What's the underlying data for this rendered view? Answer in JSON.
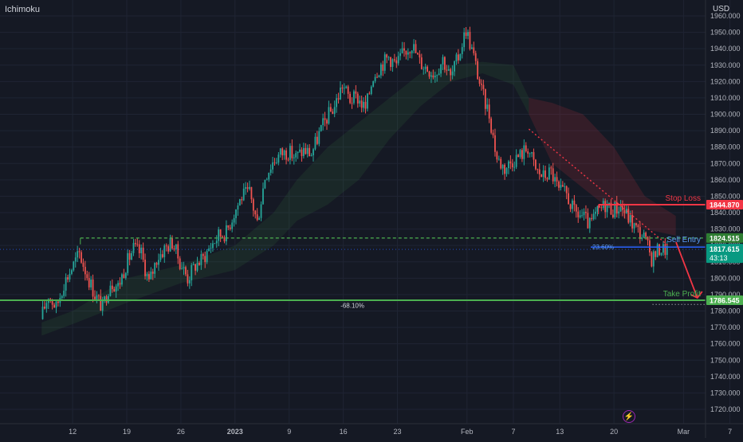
{
  "header": {
    "indicator": "Ichimoku",
    "currency": "USD"
  },
  "colors": {
    "background": "#151924",
    "up": "#26a69a",
    "down": "#ef5350",
    "stop": "#f23645",
    "target": "#4caf50",
    "entry": "#2962ff",
    "fib": "#5b9cf6"
  },
  "icons": {
    "bottom_right": "lightning-bolt-icon"
  },
  "chart_data": {
    "type": "candlestick",
    "symbol_hint": "XAUUSD",
    "y_axis": {
      "ticks": [
        "1960.000",
        "1950.000",
        "1940.000",
        "1930.000",
        "1920.000",
        "1910.000",
        "1900.000",
        "1890.000",
        "1880.000",
        "1870.000",
        "1860.000",
        "1850.000",
        "1840.000",
        "1830.000",
        "1820.000",
        "1810.000",
        "1800.000",
        "1790.000",
        "1780.000",
        "1770.000",
        "1760.000",
        "1750.000",
        "1740.000",
        "1730.000",
        "1720.000"
      ],
      "range": [
        1716,
        1964
      ]
    },
    "x_axis": {
      "ticks": [
        "12",
        "19",
        "26",
        "2023",
        "9",
        "16",
        "23",
        "Feb",
        "7",
        "13",
        "20",
        "Mar",
        "7"
      ]
    },
    "price_path": [
      [
        "Dec 8",
        1775
      ],
      [
        "Dec 9",
        1790
      ],
      [
        "Dec 10",
        1782
      ],
      [
        "Dec 11",
        1797
      ],
      [
        "Dec 12",
        1806
      ],
      [
        "Dec 13",
        1815
      ],
      [
        "Dec 14",
        1802
      ],
      [
        "Dec 15",
        1790
      ],
      [
        "Dec 16",
        1782
      ],
      [
        "Dec 17",
        1798
      ],
      [
        "Dec 18",
        1795
      ],
      [
        "Dec 19",
        1808
      ],
      [
        "Dec 20",
        1818
      ],
      [
        "Dec 21",
        1815
      ],
      [
        "Dec 22",
        1797
      ],
      [
        "Dec 23",
        1812
      ],
      [
        "Dec 24",
        1818
      ],
      [
        "Dec 25",
        1822
      ],
      [
        "Dec 26",
        1810
      ],
      [
        "Dec 27",
        1800
      ],
      [
        "Dec 28",
        1808
      ],
      [
        "Dec 29",
        1812
      ],
      [
        "Dec 30",
        1820
      ],
      [
        "Dec 31",
        1826
      ],
      [
        "Jan 1",
        1828
      ],
      [
        "Jan 2",
        1840
      ],
      [
        "Jan 3",
        1850
      ],
      [
        "Jan 4",
        1852
      ],
      [
        "Jan 5",
        1834
      ],
      [
        "Jan 6",
        1862
      ],
      [
        "Jan 7",
        1871
      ],
      [
        "Jan 8",
        1876
      ],
      [
        "Jan 9",
        1877
      ],
      [
        "Jan 10",
        1874
      ],
      [
        "Jan 11",
        1878
      ],
      [
        "Jan 12",
        1876
      ],
      [
        "Jan 13",
        1888
      ],
      [
        "Jan 14",
        1898
      ],
      [
        "Jan 15",
        1905
      ],
      [
        "Jan 16",
        1918
      ],
      [
        "Jan 17",
        1909
      ],
      [
        "Jan 18",
        1910
      ],
      [
        "Jan 19",
        1903
      ],
      [
        "Jan 20",
        1924
      ],
      [
        "Jan 21",
        1930
      ],
      [
        "Jan 22",
        1935
      ],
      [
        "Jan 23",
        1930
      ],
      [
        "Jan 24",
        1938
      ],
      [
        "Jan 25",
        1943
      ],
      [
        "Jan 26",
        1932
      ],
      [
        "Jan 27",
        1928
      ],
      [
        "Jan 28",
        1925
      ],
      [
        "Jan 29",
        1934
      ],
      [
        "Jan 30",
        1922
      ],
      [
        "Jan 31",
        1935
      ],
      [
        "Feb 1",
        1952
      ],
      [
        "Feb 2",
        1935
      ],
      [
        "Feb 3",
        1914
      ],
      [
        "Feb 4",
        1900
      ],
      [
        "Feb 5",
        1873
      ],
      [
        "Feb 6",
        1867
      ],
      [
        "Feb 7",
        1872
      ],
      [
        "Feb 8",
        1875
      ],
      [
        "Feb 9",
        1880
      ],
      [
        "Feb 10",
        1866
      ],
      [
        "Feb 11",
        1862
      ],
      [
        "Feb 12",
        1865
      ],
      [
        "Feb 13",
        1853
      ],
      [
        "Feb 14",
        1851
      ],
      [
        "Feb 15",
        1840
      ],
      [
        "Feb 16",
        1838
      ],
      [
        "Feb 17",
        1832
      ],
      [
        "Feb 18",
        1840
      ],
      [
        "Feb 19",
        1845
      ],
      [
        "Feb 20",
        1842
      ],
      [
        "Feb 21",
        1844
      ],
      [
        "Feb 22",
        1837
      ],
      [
        "Feb 23",
        1830
      ],
      [
        "Feb 24",
        1825
      ],
      [
        "Feb 25",
        1812
      ],
      [
        "Feb 26",
        1818
      ],
      [
        "Feb 27",
        1817.6
      ]
    ],
    "cloud": [
      [
        "Dec 8",
        1765,
        1773
      ],
      [
        "Dec 12",
        1772,
        1780
      ],
      [
        "Dec 19",
        1785,
        1800
      ],
      [
        "Dec 26",
        1797,
        1808
      ],
      [
        "Jan 2",
        1805,
        1820
      ],
      [
        "Jan 7",
        1820,
        1840
      ],
      [
        "Jan 10",
        1835,
        1860
      ],
      [
        "Jan 14",
        1845,
        1880
      ],
      [
        "Jan 18",
        1860,
        1895
      ],
      [
        "Jan 22",
        1885,
        1910
      ],
      [
        "Jan 26",
        1905,
        1925
      ],
      [
        "Jan 30",
        1920,
        1930
      ],
      [
        "Feb 3",
        1925,
        1932
      ],
      [
        "Feb 7",
        1918,
        1930
      ],
      [
        "Feb 9",
        1900,
        1910
      ],
      [
        "Feb 12",
        1870,
        1907
      ],
      [
        "Feb 16",
        1855,
        1900
      ],
      [
        "Feb 20",
        1840,
        1880
      ],
      [
        "Feb 24",
        1830,
        1850
      ],
      [
        "Feb 28",
        1826,
        1838
      ]
    ],
    "levels": [
      {
        "name": "Stop Loss",
        "price": 1844.87,
        "label": "1844.870"
      },
      {
        "name": "Sell Entry",
        "price": 1824.515,
        "label": "1824.515"
      },
      {
        "name": "Take Profit",
        "price": 1786.545,
        "label": "1786.545"
      }
    ],
    "current_price": {
      "label": "1817.615",
      "countdown": "43:13",
      "price": 1817.615
    },
    "fib_labels": [
      {
        "text": "23.60%",
        "price": 1819
      },
      {
        "text": "-68.10%",
        "price": 1784
      }
    ],
    "annotations": {
      "stop_loss": "Stop Loss",
      "sell_entry": "Sell Entry",
      "take_profit": "Take Profit"
    }
  }
}
